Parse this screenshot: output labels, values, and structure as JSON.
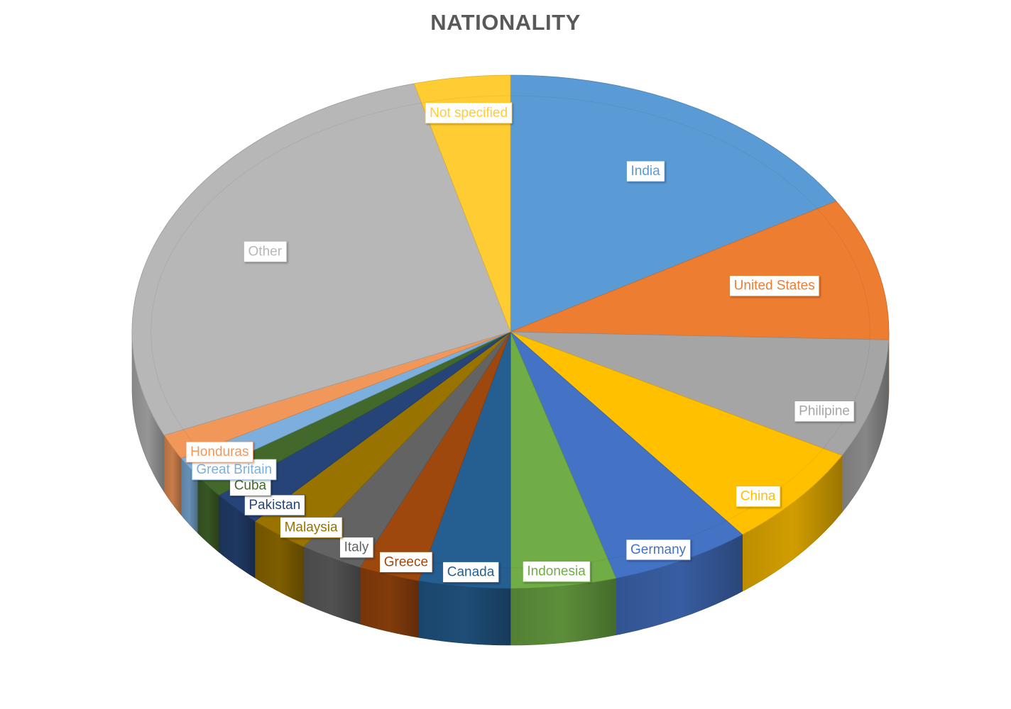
{
  "chart_data": {
    "type": "pie",
    "title": "NATIONALITY",
    "slices": [
      {
        "label": "India",
        "value": 16.5,
        "color": "#5b9bd5",
        "label_text_color": "#5b9bd5"
      },
      {
        "label": "United States",
        "value": 9.0,
        "color": "#ed7d31",
        "label_text_color": "#ed7d31"
      },
      {
        "label": "Philipine",
        "value": 7.5,
        "color": "#a5a5a5",
        "label_text_color": "#a5a5a5"
      },
      {
        "label": "China",
        "value": 6.5,
        "color": "#ffc000",
        "label_text_color": "#ffc000"
      },
      {
        "label": "Germany",
        "value": 6.0,
        "color": "#4472c4",
        "label_text_color": "#4472c4"
      },
      {
        "label": "Indonesia",
        "value": 4.5,
        "color": "#70ad47",
        "label_text_color": "#70ad47"
      },
      {
        "label": "Canada",
        "value": 3.9,
        "color": "#255e91",
        "label_text_color": "#255e91"
      },
      {
        "label": "Greece",
        "value": 2.6,
        "color": "#9e480e",
        "label_text_color": "#9e480e"
      },
      {
        "label": "Italy",
        "value": 2.7,
        "color": "#636363",
        "label_text_color": "#636363"
      },
      {
        "label": "Malaysia",
        "value": 2.6,
        "color": "#997300",
        "label_text_color": "#997300"
      },
      {
        "label": "Pakistan",
        "value": 2.2,
        "color": "#264478",
        "label_text_color": "#264478"
      },
      {
        "label": "Cuba",
        "value": 1.5,
        "color": "#43682b",
        "label_text_color": "#43682b"
      },
      {
        "label": "Great Britain",
        "value": 1.3,
        "color": "#7cafdd",
        "label_text_color": "#7cafdd"
      },
      {
        "label": "Honduras",
        "value": 1.6,
        "color": "#f1975a",
        "label_text_color": "#f1975a"
      },
      {
        "label": "Other",
        "value": 27.5,
        "color": "#b7b7b7",
        "label_text_color": "#b7b7b7"
      },
      {
        "label": "Not specified",
        "value": 4.1,
        "color": "#ffcd33",
        "label_text_color": "#ffcd33"
      }
    ],
    "legend": "none",
    "data_labels": "category name",
    "start_angle": "top, clockwise",
    "style": "3D pie"
  }
}
